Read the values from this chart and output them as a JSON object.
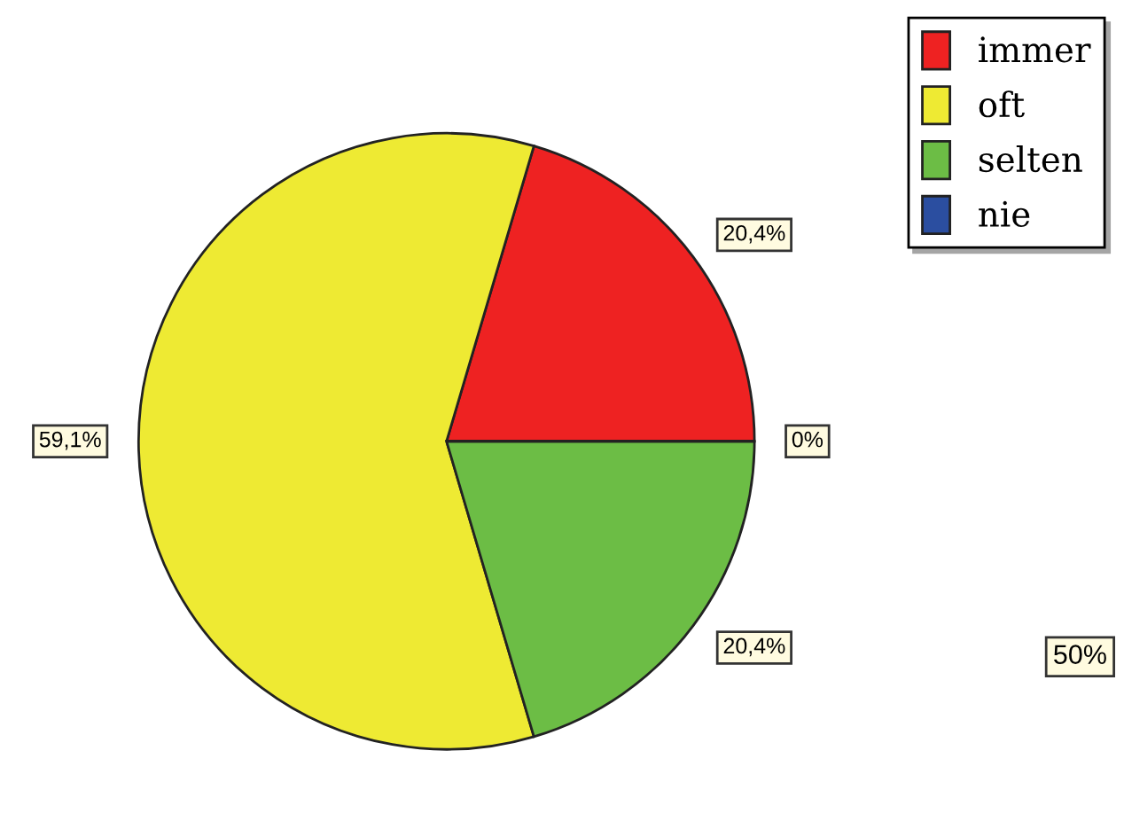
{
  "chart_data": {
    "type": "pie",
    "categories": [
      "immer",
      "oft",
      "selten",
      "nie"
    ],
    "values": [
      20.4,
      59.1,
      20.4,
      0
    ],
    "value_labels": [
      "20,4%",
      "59,1%",
      "20,4%",
      "0%"
    ],
    "colors": [
      "#ee2222",
      "#eeea33",
      "#6cbd45",
      "#2b4ea0"
    ],
    "legend": "top right",
    "annotations": [
      "50%"
    ]
  }
}
